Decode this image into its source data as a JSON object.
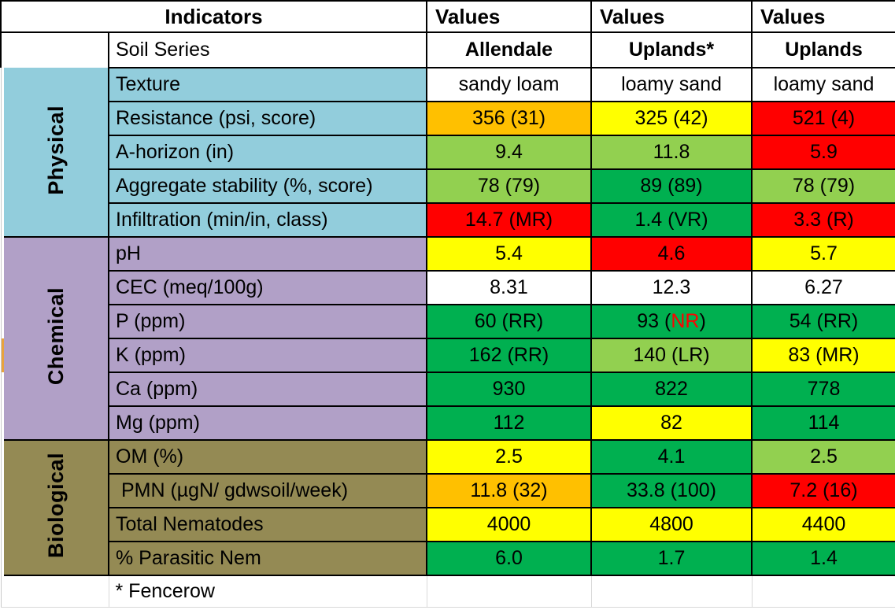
{
  "palette": {
    "white": "#FFFFFF",
    "red": "#FF0000",
    "orange": "#FFC000",
    "yellow": "#FFFF00",
    "lightgreen": "#92D050",
    "green": "#00B050",
    "blue": "#92CDDC",
    "purple": "#B1A0C7",
    "olive": "#948A54",
    "gutter_orange": "#E8A33D",
    "flag_red_text": "#FF0000"
  },
  "header": {
    "indicators_label": "Indicators",
    "values_labels": [
      "Values",
      "Values",
      "Values"
    ]
  },
  "soil_series": {
    "label": "Soil Series",
    "names": [
      "Allendale",
      "Uplands*",
      "Uplands"
    ]
  },
  "sections": [
    {
      "name": "Physical",
      "color": "blue",
      "rows": [
        {
          "indicator": "Texture",
          "values": [
            {
              "text": "sandy loam",
              "color": "white"
            },
            {
              "text": "loamy sand",
              "color": "white"
            },
            {
              "text": "loamy sand",
              "color": "white"
            }
          ]
        },
        {
          "indicator": "Resistance (psi, score)",
          "values": [
            {
              "text": "356 (31)",
              "color": "orange"
            },
            {
              "text": "325 (42)",
              "color": "yellow"
            },
            {
              "text": "521 (4)",
              "color": "red"
            }
          ]
        },
        {
          "indicator": "A-horizon (in)",
          "values": [
            {
              "text": "9.4",
              "color": "lightgreen"
            },
            {
              "text": "11.8",
              "color": "lightgreen"
            },
            {
              "text": "5.9",
              "color": "red"
            }
          ]
        },
        {
          "indicator": "Aggregate stability (%, score)",
          "values": [
            {
              "text": "78 (79)",
              "color": "lightgreen"
            },
            {
              "text": "89 (89)",
              "color": "green"
            },
            {
              "text": "78 (79)",
              "color": "lightgreen"
            }
          ]
        },
        {
          "indicator": "Infiltration (min/in, class)",
          "values": [
            {
              "text": "14.7 (MR)",
              "color": "red"
            },
            {
              "text": "1.4 (VR)",
              "color": "green"
            },
            {
              "text": "3.3 (R)",
              "color": "red"
            }
          ]
        }
      ]
    },
    {
      "name": "Chemical",
      "color": "purple",
      "rows": [
        {
          "indicator": "pH",
          "values": [
            {
              "text": "5.4",
              "color": "yellow"
            },
            {
              "text": "4.6",
              "color": "red"
            },
            {
              "text": "5.7",
              "color": "yellow"
            }
          ]
        },
        {
          "indicator": "CEC (meq/100g)",
          "values": [
            {
              "text": "8.31",
              "color": "white"
            },
            {
              "text": "12.3",
              "color": "white"
            },
            {
              "text": "6.27",
              "color": "white"
            }
          ]
        },
        {
          "indicator": "P (ppm)",
          "values": [
            {
              "text": "60 (RR)",
              "color": "green"
            },
            {
              "parts": [
                {
                  "text": "93 ("
                },
                {
                  "text": "NR",
                  "color": "#FF0000"
                },
                {
                  "text": ")"
                }
              ],
              "color": "green"
            },
            {
              "text": "54 (RR)",
              "color": "green"
            }
          ]
        },
        {
          "indicator": "K (ppm)",
          "gutter_color": "gutter_orange",
          "values": [
            {
              "text": "162 (RR)",
              "color": "green"
            },
            {
              "text": "140 (LR)",
              "color": "lightgreen"
            },
            {
              "text": "83 (MR)",
              "color": "yellow"
            }
          ]
        },
        {
          "indicator": "Ca (ppm)",
          "values": [
            {
              "text": "930",
              "color": "green"
            },
            {
              "text": "822",
              "color": "green"
            },
            {
              "text": "778",
              "color": "green"
            }
          ]
        },
        {
          "indicator": "Mg (ppm)",
          "values": [
            {
              "text": "112",
              "color": "green"
            },
            {
              "text": "82",
              "color": "yellow"
            },
            {
              "text": "114",
              "color": "green"
            }
          ]
        }
      ]
    },
    {
      "name": "Biological",
      "color": "olive",
      "rows": [
        {
          "indicator": "OM (%)",
          "values": [
            {
              "text": "2.5",
              "color": "yellow"
            },
            {
              "text": "4.1",
              "color": "green"
            },
            {
              "text": "2.5",
              "color": "lightgreen"
            }
          ]
        },
        {
          "indicator": " PMN (µgN/ gdwsoil/week)",
          "values": [
            {
              "text": "11.8 (32)",
              "color": "orange"
            },
            {
              "text": "33.8 (100)",
              "color": "green"
            },
            {
              "text": "7.2 (16)",
              "color": "red"
            }
          ]
        },
        {
          "indicator": "Total Nematodes",
          "values": [
            {
              "text": "4000",
              "color": "yellow"
            },
            {
              "text": "4800",
              "color": "yellow"
            },
            {
              "text": "4400",
              "color": "yellow"
            }
          ]
        },
        {
          "indicator": "% Parasitic Nem",
          "values": [
            {
              "text": "6.0",
              "color": "green"
            },
            {
              "text": "1.7",
              "color": "green"
            },
            {
              "text": "1.4",
              "color": "green"
            }
          ]
        }
      ]
    }
  ],
  "footnote": "* Fencerow"
}
